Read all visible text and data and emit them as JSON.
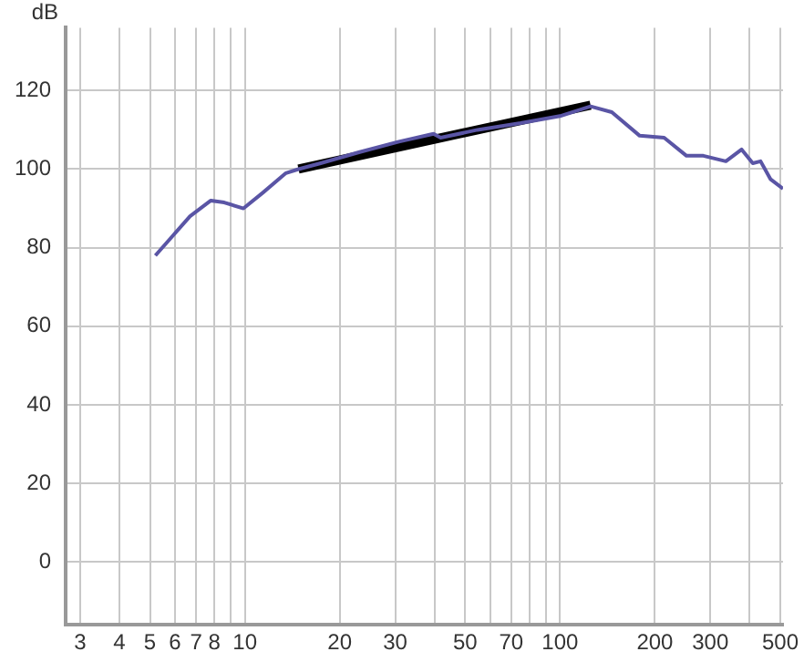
{
  "chart_data": {
    "type": "line",
    "ylabel": "dB",
    "log": "x",
    "grid": true,
    "legend": false,
    "marker": "none",
    "line_style": "solid",
    "xlim": [
      2.7,
      510
    ],
    "ylim": [
      -16,
      136
    ],
    "xticks": [
      3,
      4,
      5,
      6,
      7,
      8,
      {
        "value": 9,
        "label": null
      },
      10,
      20,
      30,
      {
        "value": 40,
        "label": null
      },
      50,
      {
        "value": 60,
        "label": null
      },
      70,
      {
        "value": 80,
        "label": null
      },
      {
        "value": 90,
        "label": null
      },
      100,
      200,
      300,
      {
        "value": 400,
        "label": null
      },
      500
    ],
    "yticks": [
      0,
      20,
      40,
      60,
      80,
      100,
      120
    ],
    "series": [
      {
        "color": "#5a55a5",
        "x": [
          5.2,
          5.9,
          6.7,
          7.8,
          8.6,
          9.9,
          11.4,
          13.5,
          14.8,
          17.4,
          23,
          30.8,
          39.7,
          41.8,
          54.7,
          75,
          100,
          125,
          146,
          179,
          214,
          252,
          285,
          336,
          377,
          409,
          433,
          466,
          510
        ],
        "values": [
          78,
          83,
          88,
          92,
          91.5,
          90,
          94,
          99,
          100,
          101.5,
          104.3,
          107,
          109,
          108,
          110,
          111.7,
          113.5,
          116,
          114.5,
          108.5,
          108,
          103.4,
          103.4,
          102,
          105,
          101.5,
          102,
          97.4,
          95
        ]
      },
      {
        "type": "line",
        "color": "#000000",
        "x": [
          14.8,
          125
        ],
        "values": [
          100,
          116.3
        ]
      }
    ]
  }
}
